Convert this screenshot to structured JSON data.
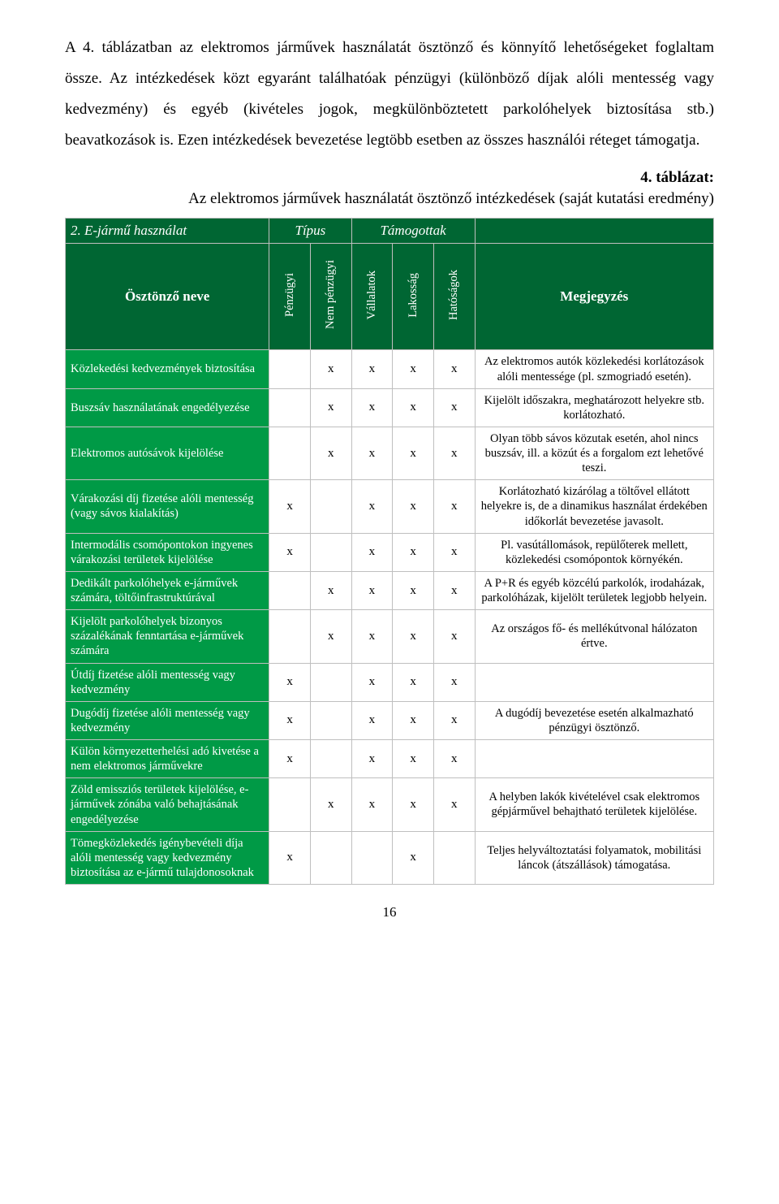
{
  "paragraphs": {
    "p1": "A 4. táblázatban az elektromos járművek használatát ösztönző és könnyítő lehetőségeket foglaltam össze. Az intézkedések közt egyaránt találhatóak pénzügyi (különböző díjak alóli mentesség vagy kedvezmény) és egyéb (kivételes jogok, megkülönböztetett parkolóhelyek biztosítása stb.) beavatkozások is. Ezen intézkedések bevezetése legtöbb esetben az összes használói réteget támogatja."
  },
  "caption": {
    "label": "4. táblázat:",
    "text": "Az elektromos járművek használatát ösztönző intézkedések (saját kutatási eredmény)"
  },
  "table": {
    "section_label": "2. E-jármű használat",
    "group_type": "Típus",
    "group_supported": "Támogottak",
    "row_header": "Ösztönző neve",
    "note_header": "Megjegyzés",
    "type_cols": [
      "Pénzügyi",
      "Nem pénzügyi"
    ],
    "supported_cols": [
      "Vállalatok",
      "Lakosság",
      "Hatóságok"
    ],
    "rows": [
      {
        "name": "Közlekedési kedvezmények biztosítása",
        "marks": [
          "",
          "x",
          "x",
          "x",
          "x"
        ],
        "note": "Az elektromos autók közlekedési korlátozások alóli mentessége (pl. szmogriadó esetén)."
      },
      {
        "name": "Buszsáv használatának engedélyezése",
        "marks": [
          "",
          "x",
          "x",
          "x",
          "x"
        ],
        "note": "Kijelölt időszakra, meghatározott helyekre stb. korlátozható."
      },
      {
        "name": "Elektromos autósávok kijelölése",
        "marks": [
          "",
          "x",
          "x",
          "x",
          "x"
        ],
        "note": "Olyan több sávos közutak esetén, ahol nincs buszsáv, ill. a közút és a forgalom ezt lehetővé teszi."
      },
      {
        "name": "Várakozási díj fizetése alóli mentesség (vagy sávos kialakítás)",
        "marks": [
          "x",
          "",
          "x",
          "x",
          "x"
        ],
        "note": "Korlátozható kizárólag a töltővel ellátott helyekre is, de a dinamikus használat érdekében időkorlát bevezetése javasolt."
      },
      {
        "name": "Intermodális csomópontokon ingyenes várakozási területek kijelölése",
        "marks": [
          "x",
          "",
          "x",
          "x",
          "x"
        ],
        "note": "Pl. vasútállomások, repülőterek mellett, közlekedési csomópontok környékén."
      },
      {
        "name": "Dedikált parkolóhelyek e-járművek számára, töltőinfrastruktúrával",
        "marks": [
          "",
          "x",
          "x",
          "x",
          "x"
        ],
        "note": "A P+R és egyéb közcélú parkolók, irodaházak, parkolóházak, kijelölt területek legjobb helyein."
      },
      {
        "name": "Kijelölt parkolóhelyek bizonyos százalékának fenntartása e-járművek számára",
        "marks": [
          "",
          "x",
          "x",
          "x",
          "x"
        ],
        "note": "Az országos fő- és mellékútvonal hálózaton értve."
      },
      {
        "name": "Útdíj fizetése alóli mentesség vagy kedvezmény",
        "marks": [
          "x",
          "",
          "x",
          "x",
          "x"
        ],
        "note": ""
      },
      {
        "name": "Dugódíj fizetése alóli mentesség vagy kedvezmény",
        "marks": [
          "x",
          "",
          "x",
          "x",
          "x"
        ],
        "note": "A dugódíj bevezetése esetén alkalmazható pénzügyi ösztönző."
      },
      {
        "name": "Külön környezetterhelési adó kivetése a nem elektromos járművekre",
        "marks": [
          "x",
          "",
          "x",
          "x",
          "x"
        ],
        "note": ""
      },
      {
        "name": "Zöld emissziós területek kijelölése, e-járművek zónába való behajtásának engedélyezése",
        "marks": [
          "",
          "x",
          "x",
          "x",
          "x"
        ],
        "note": "A helyben lakók kivételével csak elektromos gépjárművel behajtható területek kijelölése."
      },
      {
        "name": "Tömegközlekedés igénybevételi díja alóli mentesség vagy kedvezmény biztosítása az e-jármű tulajdonosoknak",
        "marks": [
          "x",
          "",
          "",
          "x",
          ""
        ],
        "note": "Teljes helyváltoztatási folyamatok, mobilitási láncok (átszállások) támogatása."
      }
    ]
  },
  "page_number": "16"
}
